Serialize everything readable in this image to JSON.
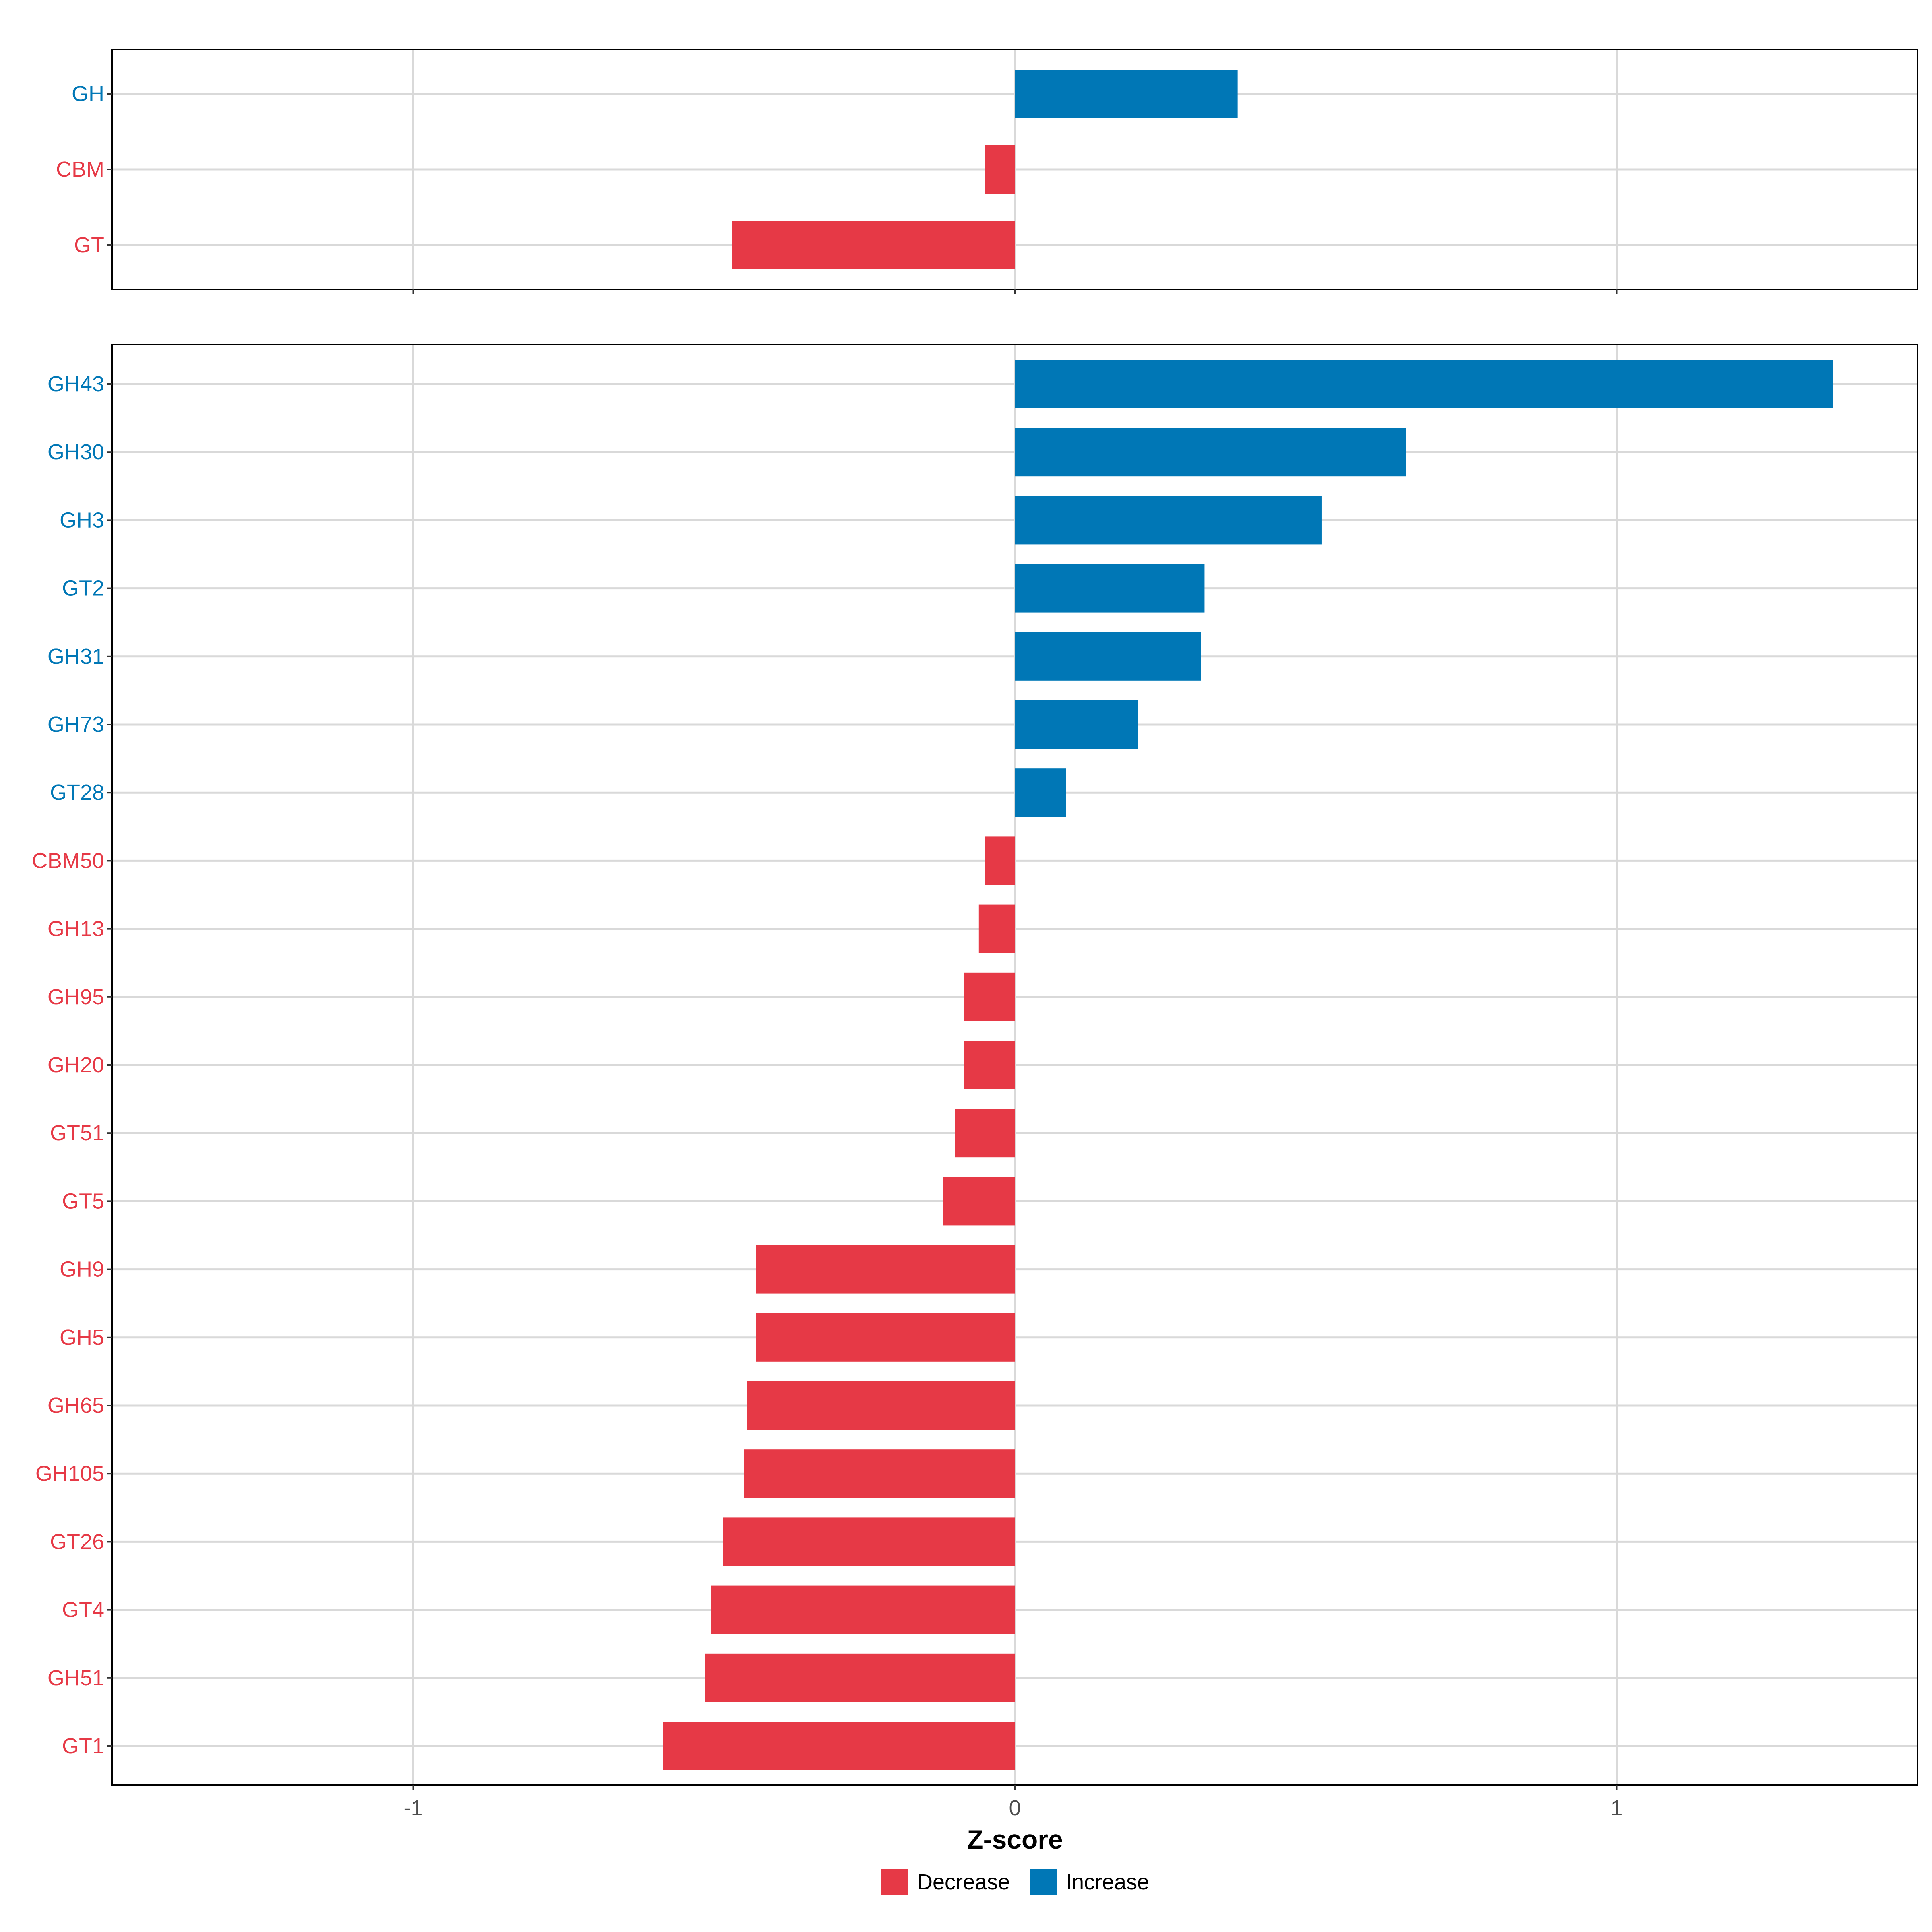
{
  "colors": {
    "decrease": "#E63946",
    "increase": "#0077B6",
    "grid": "#D9D9D9",
    "panel_border": "#000000"
  },
  "chart_data": {
    "type": "bar",
    "orientation": "horizontal",
    "xlabel": "Z-score",
    "xlim": [
      -1.5,
      1.5
    ],
    "xticks": [
      -1,
      0,
      1
    ],
    "xtick_labels": [
      "-1",
      "0",
      "1"
    ],
    "grid": true,
    "legend_position": "bottom",
    "legend": [
      {
        "key": "decrease",
        "label": "Decrease"
      },
      {
        "key": "increase",
        "label": "Increase"
      }
    ],
    "panels": [
      {
        "name": "family",
        "categories": [
          "GH",
          "CBM",
          "GT"
        ],
        "values": [
          0.37,
          -0.05,
          -0.47
        ],
        "direction": [
          "increase",
          "decrease",
          "decrease"
        ]
      },
      {
        "name": "subfamily",
        "categories": [
          "GH43",
          "GH30",
          "GH3",
          "GT2",
          "GH31",
          "GH73",
          "GT28",
          "CBM50",
          "GH13",
          "GH95",
          "GH20",
          "GT51",
          "GT5",
          "GH9",
          "GH5",
          "GH65",
          "GH105",
          "GT26",
          "GT4",
          "GH51",
          "GT1"
        ],
        "values": [
          1.36,
          0.65,
          0.51,
          0.315,
          0.31,
          0.205,
          0.085,
          -0.05,
          -0.06,
          -0.085,
          -0.085,
          -0.1,
          -0.12,
          -0.43,
          -0.43,
          -0.445,
          -0.45,
          -0.485,
          -0.505,
          -0.515,
          -0.585
        ],
        "direction": [
          "increase",
          "increase",
          "increase",
          "increase",
          "increase",
          "increase",
          "increase",
          "decrease",
          "decrease",
          "decrease",
          "decrease",
          "decrease",
          "decrease",
          "decrease",
          "decrease",
          "decrease",
          "decrease",
          "decrease",
          "decrease",
          "decrease",
          "decrease"
        ]
      }
    ]
  }
}
